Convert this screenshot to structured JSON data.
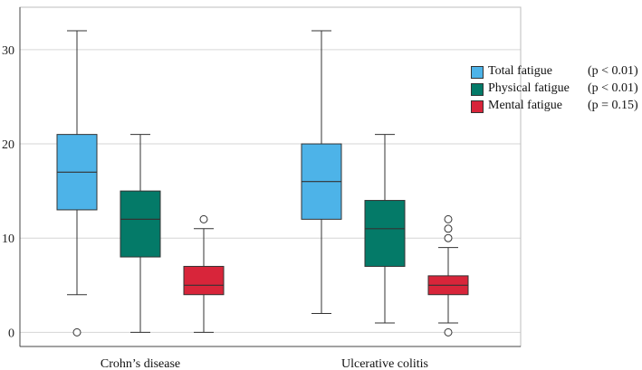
{
  "chart_data": {
    "type": "boxplot",
    "title": "",
    "xlabel": "",
    "ylabel": "",
    "ylim": [
      -1.5,
      34.5
    ],
    "yticks": [
      0,
      10,
      20,
      30
    ],
    "grid": true,
    "legend_position": "right",
    "categories": [
      "Crohn’s disease",
      "Ulcerative colitis"
    ],
    "series": [
      {
        "name": "Total fatigue",
        "pvalue": "(p < 0.01)",
        "color": "#4db3e8",
        "boxes": [
          {
            "min": 4,
            "q1": 13,
            "median": 17,
            "q3": 21,
            "max": 32,
            "outliers": [
              0
            ]
          },
          {
            "min": 2,
            "q1": 12,
            "median": 16,
            "q3": 20,
            "max": 32,
            "outliers": []
          }
        ]
      },
      {
        "name": "Physical fatigue",
        "pvalue": "(p < 0.01)",
        "color": "#047a68",
        "boxes": [
          {
            "min": 0,
            "q1": 8,
            "median": 12,
            "q3": 15,
            "max": 21,
            "outliers": []
          },
          {
            "min": 1,
            "q1": 7,
            "median": 11,
            "q3": 14,
            "max": 21,
            "outliers": []
          }
        ]
      },
      {
        "name": "Mental fatigue",
        "pvalue": "(p = 0.15)",
        "color": "#d8253a",
        "boxes": [
          {
            "min": 0,
            "q1": 4,
            "median": 5,
            "q3": 7,
            "max": 11,
            "outliers": [
              12
            ]
          },
          {
            "min": 1,
            "q1": 4,
            "median": 5,
            "q3": 6,
            "max": 9,
            "outliers": [
              10,
              11,
              12,
              0
            ]
          }
        ]
      }
    ]
  }
}
